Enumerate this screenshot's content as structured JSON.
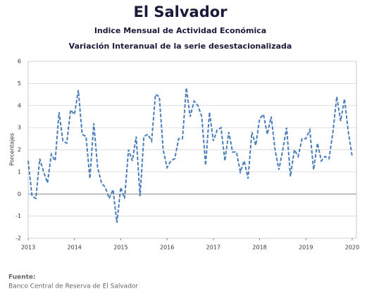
{
  "chart_data": {
    "type": "line",
    "title": "El Salvador",
    "subtitle": "Indice Mensual de  Actividad Económica",
    "subtitle2": "Variación Interanual de la serie desestacionalizada",
    "y_label": "Porcentajes",
    "color": "#4a7ebb",
    "grid": true,
    "ylim": [
      -2,
      6
    ],
    "yticks": [
      -2,
      -1,
      0,
      1,
      2,
      3,
      4,
      5,
      6
    ],
    "categories": [
      "2013",
      null,
      null,
      null,
      null,
      null,
      null,
      null,
      null,
      null,
      null,
      null,
      "2014",
      null,
      null,
      null,
      null,
      null,
      null,
      null,
      null,
      null,
      null,
      null,
      "2015",
      null,
      null,
      null,
      null,
      null,
      null,
      null,
      null,
      null,
      null,
      null,
      "2016",
      null,
      null,
      null,
      null,
      null,
      null,
      null,
      null,
      null,
      null,
      null,
      "2017",
      null,
      null,
      null,
      null,
      null,
      null,
      null,
      null,
      null,
      null,
      null,
      "2018",
      null,
      null,
      null,
      null,
      null,
      null,
      null,
      null,
      null,
      null,
      null,
      "2019",
      null,
      null,
      null,
      null,
      null,
      null,
      null,
      null,
      null,
      null,
      null,
      "2020"
    ],
    "values": [
      1.5,
      -0.1,
      -0.2,
      1.6,
      1.0,
      0.5,
      1.8,
      1.5,
      3.7,
      2.4,
      2.3,
      3.8,
      3.6,
      4.7,
      2.7,
      2.6,
      0.7,
      3.2,
      1.2,
      0.5,
      0.3,
      -0.2,
      0.2,
      -1.3,
      0.3,
      -0.2,
      2.0,
      1.5,
      2.6,
      -0.1,
      2.6,
      2.7,
      2.4,
      4.5,
      4.4,
      2.0,
      1.2,
      1.5,
      1.6,
      2.5,
      2.5,
      4.8,
      3.5,
      4.2,
      4.0,
      3.5,
      1.3,
      3.7,
      2.4,
      2.9,
      3.0,
      1.5,
      2.8,
      1.9,
      1.9,
      1.0,
      1.5,
      0.7,
      2.8,
      2.2,
      3.4,
      3.6,
      2.7,
      3.5,
      2.0,
      1.1,
      2.0,
      3.0,
      0.8,
      2.0,
      1.7,
      2.5,
      2.5,
      2.9,
      1.1,
      2.3,
      1.5,
      1.7,
      1.6,
      2.8,
      4.4,
      3.3,
      4.3,
      2.8,
      1.7
    ]
  },
  "footer": {
    "label": "Fuente:",
    "text": "Banco Central de Reserva de El Salvador"
  }
}
